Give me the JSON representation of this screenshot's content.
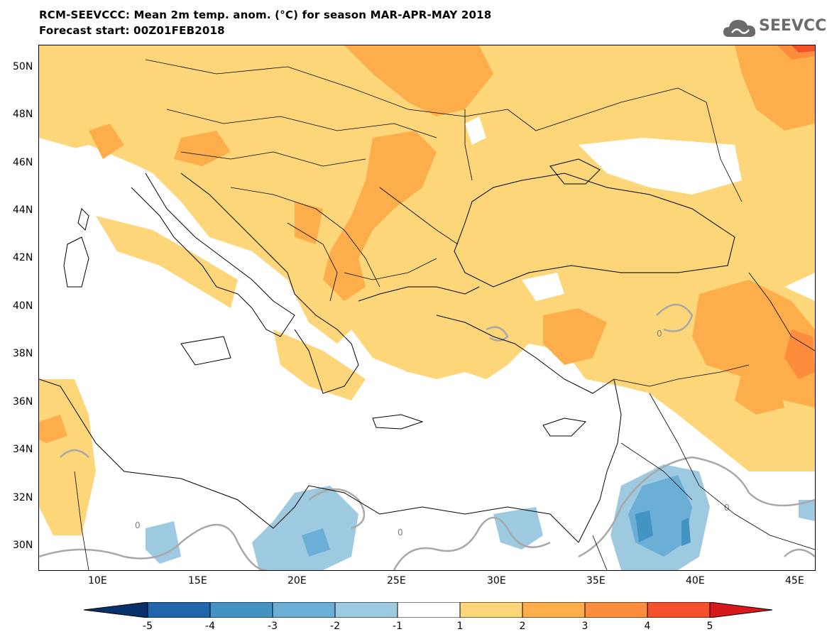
{
  "header": {
    "title_line1": "RCM-SEEVCCC: Mean 2m temp. anom. (°C) for season MAR-APR-MAY 2018",
    "title_line2": "Forecast start: 00Z01FEB2018",
    "logo_text": "SEEVCCC"
  },
  "axes": {
    "lat_labels": [
      "50N",
      "48N",
      "46N",
      "44N",
      "42N",
      "40N",
      "38N",
      "36N",
      "34N",
      "32N",
      "30N"
    ],
    "lon_labels": [
      "10E",
      "15E",
      "20E",
      "25E",
      "30E",
      "35E",
      "40E",
      "45E"
    ]
  },
  "map": {
    "contour_label": "0",
    "land_color": "#ffffff",
    "sea_color": "#ffffff"
  },
  "colorbar": {
    "labels": [
      "-5",
      "-4",
      "-3",
      "-2",
      "-1",
      "1",
      "2",
      "3",
      "4",
      "5"
    ],
    "colors": [
      "#08306b",
      "#2166ac",
      "#4393c3",
      "#6baed6",
      "#9ecae1",
      "#ffffff",
      "#fdd67a",
      "#fdae4b",
      "#fc8d3c",
      "#f4512a",
      "#d7191c"
    ]
  }
}
